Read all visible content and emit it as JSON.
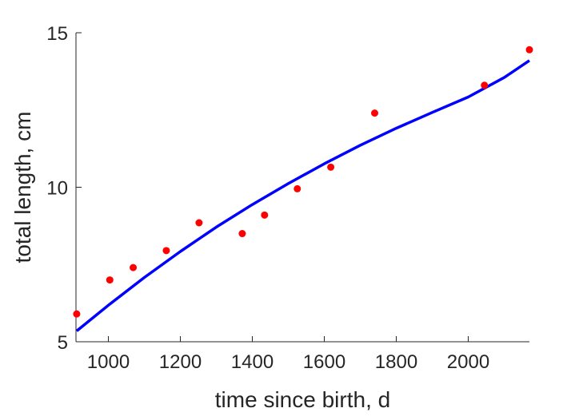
{
  "chart_data": {
    "type": "scatter",
    "title": "",
    "xlabel": "time since birth, d",
    "ylabel": "total length, cm",
    "xlim": [
      910,
      2170
    ],
    "ylim": [
      5,
      15
    ],
    "xticks": [
      1000,
      1200,
      1400,
      1600,
      1800,
      2000
    ],
    "yticks": [
      5,
      10,
      15
    ],
    "grid": false,
    "legend": "none",
    "colors": {
      "points": "#ff0000",
      "fit": "#0000ff",
      "axes": "#262626"
    },
    "series": [
      {
        "kind": "scatter",
        "x": [
          912,
          1004,
          1069,
          1161,
          1252,
          1372,
          1434,
          1525,
          1618,
          1740,
          2045,
          2170
        ],
        "y": [
          5.9,
          7.0,
          7.4,
          7.95,
          8.85,
          8.5,
          9.1,
          9.95,
          10.65,
          12.4,
          13.3,
          14.45
        ]
      },
      {
        "kind": "line",
        "x": [
          912,
          1000,
          1100,
          1200,
          1300,
          1400,
          1500,
          1600,
          1700,
          1800,
          1900,
          2000,
          2100,
          2170
        ],
        "y": [
          5.35,
          6.18,
          7.08,
          7.92,
          8.71,
          9.44,
          10.12,
          10.76,
          11.36,
          11.91,
          12.42,
          12.92,
          13.55,
          14.1
        ]
      }
    ]
  }
}
